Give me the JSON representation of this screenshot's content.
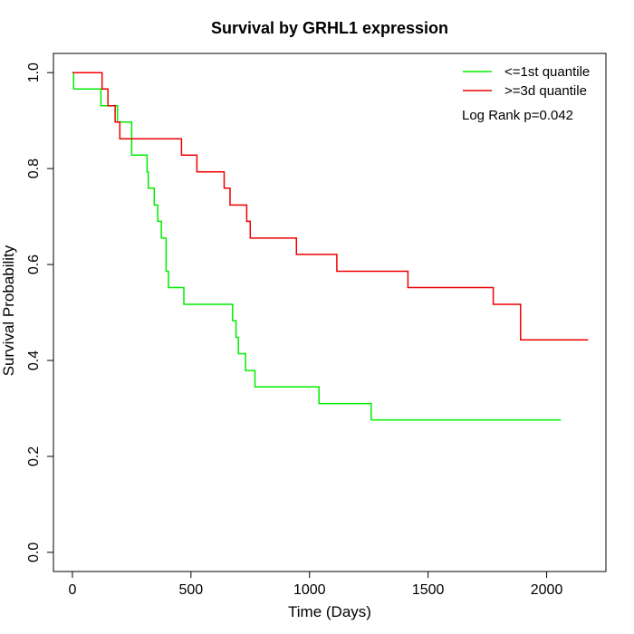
{
  "chart_data": {
    "type": "line",
    "step": true,
    "title": "Survival by GRHL1 expression",
    "xlabel": "Time (Days)",
    "ylabel": "Survival Probability",
    "xlim": [
      -80,
      2250
    ],
    "ylim": [
      -0.04,
      1.04
    ],
    "x_ticks": [
      0,
      500,
      1000,
      1500,
      2000
    ],
    "x_tick_labels": [
      "0",
      "500",
      "1000",
      "1500",
      "2000"
    ],
    "y_ticks": [
      0.0,
      0.2,
      0.4,
      0.6,
      0.8,
      1.0
    ],
    "y_tick_labels": [
      "0.0",
      "0.2",
      "0.4",
      "0.6",
      "0.8",
      "1.0"
    ],
    "grid": false,
    "legend_position": "top-right",
    "annotation": "Log Rank p=0.042",
    "series": [
      {
        "name": "<=1st quantile",
        "color": "#00ee00",
        "x": [
          0,
          5,
          120,
          190,
          250,
          315,
          320,
          345,
          360,
          375,
          395,
          405,
          470,
          675,
          690,
          700,
          730,
          770,
          1040,
          1260,
          2060
        ],
        "y": [
          1.0,
          0.966,
          0.931,
          0.897,
          0.828,
          0.793,
          0.759,
          0.724,
          0.69,
          0.655,
          0.586,
          0.552,
          0.517,
          0.483,
          0.448,
          0.414,
          0.379,
          0.345,
          0.31,
          0.276,
          0.276
        ]
      },
      {
        "name": ">=3d quantile",
        "color": "#ee0000",
        "x": [
          0,
          125,
          150,
          180,
          200,
          460,
          525,
          640,
          665,
          735,
          750,
          945,
          1115,
          1415,
          1775,
          1890,
          2175
        ],
        "y": [
          1.0,
          0.966,
          0.931,
          0.897,
          0.862,
          0.828,
          0.793,
          0.759,
          0.724,
          0.69,
          0.655,
          0.621,
          0.586,
          0.552,
          0.517,
          0.443,
          0.443
        ]
      }
    ]
  }
}
